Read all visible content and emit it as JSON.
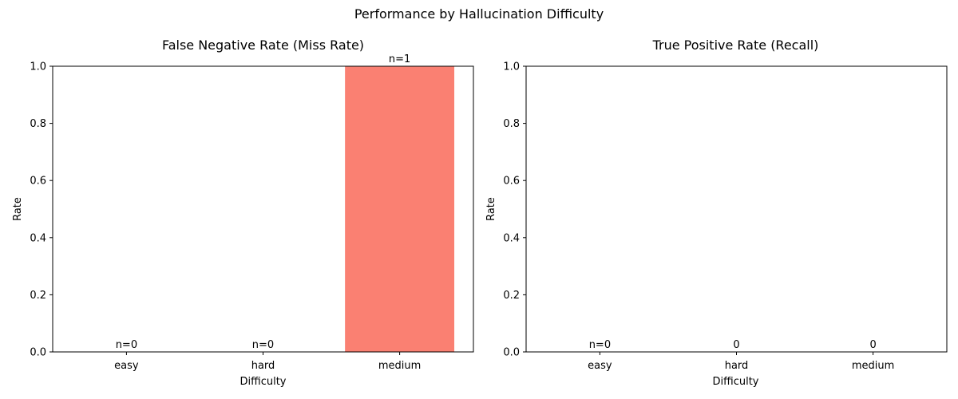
{
  "figure": {
    "title": "Performance by Hallucination Difficulty"
  },
  "chart_data": [
    {
      "type": "bar",
      "title": "False Negative Rate (Miss Rate)",
      "xlabel": "Difficulty",
      "ylabel": "Rate",
      "categories": [
        "easy",
        "hard",
        "medium"
      ],
      "values": [
        0,
        0,
        1
      ],
      "bar_labels": [
        "n=0",
        "n=0",
        "n=1"
      ],
      "ylim": [
        0,
        1
      ],
      "yticks": [
        "0.0",
        "0.2",
        "0.4",
        "0.6",
        "0.8",
        "1.0"
      ],
      "bar_color": "#fa8072",
      "grid": false
    },
    {
      "type": "bar",
      "title": "True Positive Rate (Recall)",
      "xlabel": "Difficulty",
      "ylabel": "Rate",
      "categories": [
        "easy",
        "hard",
        "medium"
      ],
      "values": [
        0,
        0,
        0
      ],
      "bar_labels": [
        "n=0",
        "0",
        "0"
      ],
      "ylim": [
        0,
        1
      ],
      "yticks": [
        "0.0",
        "0.2",
        "0.4",
        "0.6",
        "0.8",
        "1.0"
      ],
      "bar_color": "#90ee90",
      "grid": false
    }
  ]
}
